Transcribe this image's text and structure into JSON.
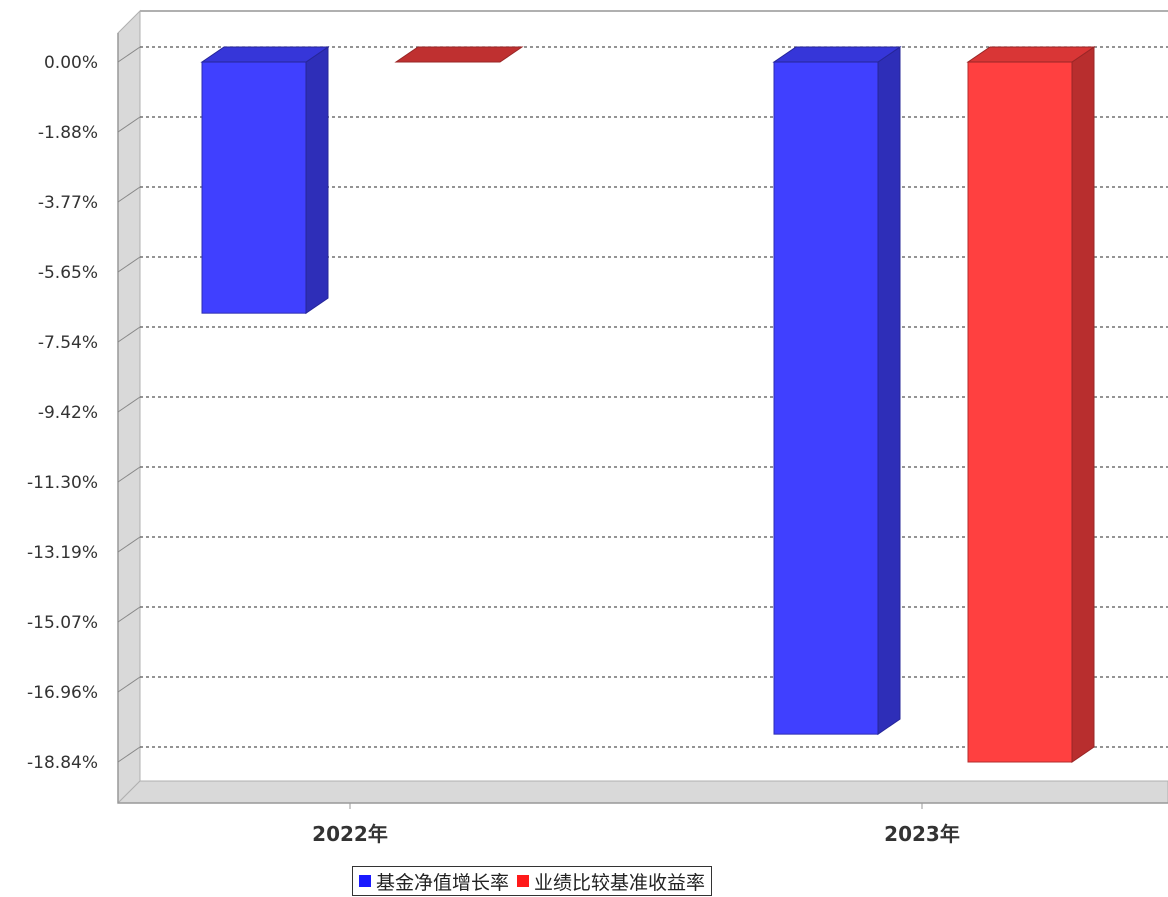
{
  "chart_data": {
    "type": "bar",
    "categories": [
      "2022年",
      "2023年"
    ],
    "series": [
      {
        "name": "基金净值增长率",
        "values": [
          -6.76,
          -18.09
        ],
        "color": "#4040ff"
      },
      {
        "name": "业绩比较基准收益率",
        "values": [
          0.0,
          -18.84
        ],
        "color": "#ff4040"
      }
    ],
    "yticks": [
      "0.00%",
      "-1.88%",
      "-3.77%",
      "-5.65%",
      "-7.54%",
      "-9.42%",
      "-11.30%",
      "-13.19%",
      "-15.07%",
      "-16.96%",
      "-18.84%"
    ],
    "ylim": [
      -18.84,
      0.0
    ],
    "grid": true,
    "legend_position": "bottom"
  }
}
